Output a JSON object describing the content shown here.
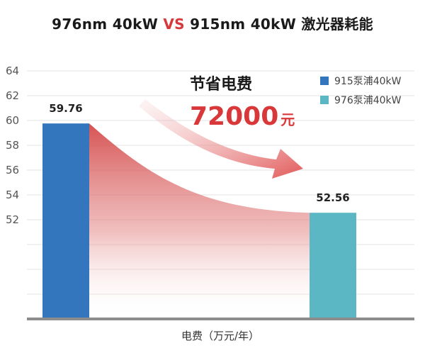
{
  "title": {
    "part1": "976nm 40kW ",
    "vs": "VS",
    "part2": " 915nm 40kW 激光器耗能"
  },
  "annotation": {
    "label": "节省电费",
    "amount": "72000",
    "unit": "元"
  },
  "colors": {
    "bar_915": "#3376be",
    "bar_976": "#5ab7c3",
    "accent": "#d8383a",
    "axis": "#8c8c8c",
    "grid": "#e3e3e3"
  },
  "chart_data": {
    "type": "bar",
    "categories": [
      "915泵浦40kW",
      "976泵浦40kW"
    ],
    "values": [
      59.76,
      52.56
    ],
    "value_labels": [
      "59.76",
      "52.56"
    ],
    "colors": [
      "#3376be",
      "#5ab7c3"
    ],
    "legend": [
      "915泵浦40kW",
      "976泵浦40kW"
    ],
    "legend_position": "top-right",
    "xlabel": "电费（万元/年）",
    "ylabel": "",
    "yticks": [
      52,
      54,
      56,
      58,
      60,
      62,
      64
    ],
    "ylim": [
      44,
      64
    ],
    "grid": true
  }
}
